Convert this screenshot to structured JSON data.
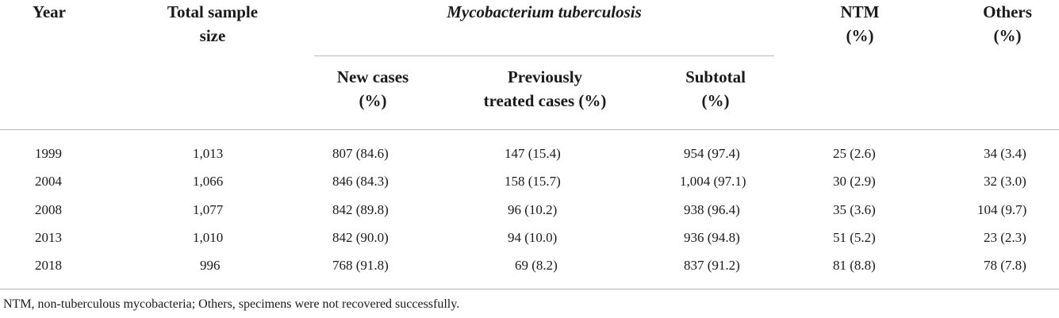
{
  "table": {
    "headers": {
      "year": "Year",
      "total_line1": "Total sample",
      "total_line2": "size",
      "mtb": "Mycobacterium tuberculosis",
      "new_line1": "New cases",
      "new_line2": "(%)",
      "prev_line1": "Previously",
      "prev_line2": "treated cases (%)",
      "sub_line1": "Subtotal",
      "sub_line2": "(%)",
      "ntm_line1": "NTM",
      "ntm_line2": "(%)",
      "others_line1": "Others",
      "others_line2": "(%)"
    },
    "rows": [
      {
        "year": "1999",
        "total": "1,013",
        "new": "807 (84.6)",
        "prev": "147 (15.4)",
        "sub": "954 (97.4)",
        "ntm": "25 (2.6)",
        "others": "34 (3.4)"
      },
      {
        "year": "2004",
        "total": "1,066",
        "new": "846 (84.3)",
        "prev": "158 (15.7)",
        "sub": "1,004 (97.1)",
        "ntm": "30 (2.9)",
        "others": "32 (3.0)"
      },
      {
        "year": "2008",
        "total": "1,077",
        "new": "842 (89.8)",
        "prev": "96 (10.2)",
        "sub": "938 (96.4)",
        "ntm": "35 (3.6)",
        "others": "104 (9.7)"
      },
      {
        "year": "2013",
        "total": "1,010",
        "new": "842 (90.0)",
        "prev": "94 (10.0)",
        "sub": "936 (94.8)",
        "ntm": "51 (5.2)",
        "others": "23 (2.3)"
      },
      {
        "year": "2018",
        "total": "996",
        "new": "768 (91.8)",
        "prev": "69 (8.2)",
        "sub": "837 (91.2)",
        "ntm": "81 (8.8)",
        "others": "78 (7.8)"
      }
    ],
    "footnote": "NTM, non-tuberculous mycobacteria; Others, specimens were not recovered successfully."
  }
}
